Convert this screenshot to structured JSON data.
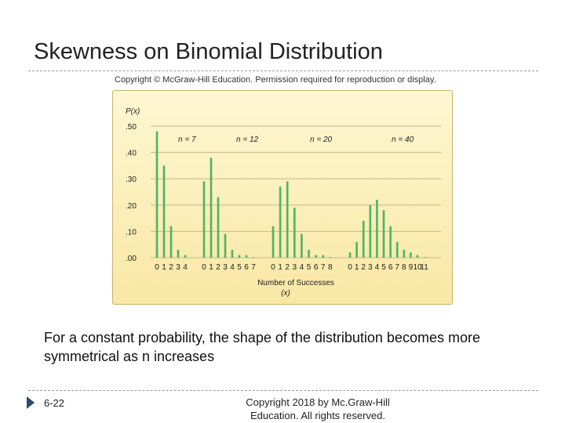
{
  "slide": {
    "title": "Skewness on Binomial Distribution",
    "image_copyright": "Copyright © McGraw-Hill Education. Permission required for reproduction or display.",
    "caption": "For a constant probability, the shape of the distribution becomes more symmetrical as n increases",
    "slide_number": "6-22",
    "footer_line1": "Copyright 2018 by Mc.Graw-Hill",
    "footer_line2": "Education. All rights reserved."
  },
  "colors": {
    "bar": "#4cb465",
    "grid": "#c9b98a",
    "text": "#222222"
  },
  "chart_data": {
    "type": "bar",
    "ylabel": "P(x)",
    "xlabel_line1": "Number of Successes",
    "xlabel_line2": "(x)",
    "ylim": [
      0,
      0.5
    ],
    "y_ticks": [
      ".50",
      ".40",
      ".30",
      ".20",
      ".10",
      ".00"
    ],
    "y_tick_values": [
      0.5,
      0.4,
      0.3,
      0.2,
      0.1,
      0.0
    ],
    "groups": [
      {
        "name": "n = 7",
        "x": [
          "0",
          "1",
          "2",
          "3",
          "4"
        ],
        "values": [
          0.48,
          0.35,
          0.12,
          0.03,
          0.01
        ]
      },
      {
        "name": "n = 12",
        "x": [
          "0",
          "1",
          "2",
          "3",
          "4",
          "5",
          "6",
          "7"
        ],
        "values": [
          0.29,
          0.38,
          0.23,
          0.09,
          0.03,
          0.01,
          0.01,
          0.0
        ]
      },
      {
        "name": "n = 20",
        "x": [
          "0",
          "1",
          "2",
          "3",
          "4",
          "5",
          "6",
          "7",
          "8"
        ],
        "values": [
          0.12,
          0.27,
          0.29,
          0.19,
          0.09,
          0.03,
          0.01,
          0.01,
          0.0
        ]
      },
      {
        "name": "n = 40",
        "x": [
          "0",
          "1",
          "2",
          "3",
          "4",
          "5",
          "6",
          "7",
          "8",
          "9",
          "10",
          "11"
        ],
        "values": [
          0.02,
          0.06,
          0.14,
          0.2,
          0.22,
          0.18,
          0.12,
          0.06,
          0.03,
          0.02,
          0.01,
          0.0
        ]
      }
    ]
  }
}
